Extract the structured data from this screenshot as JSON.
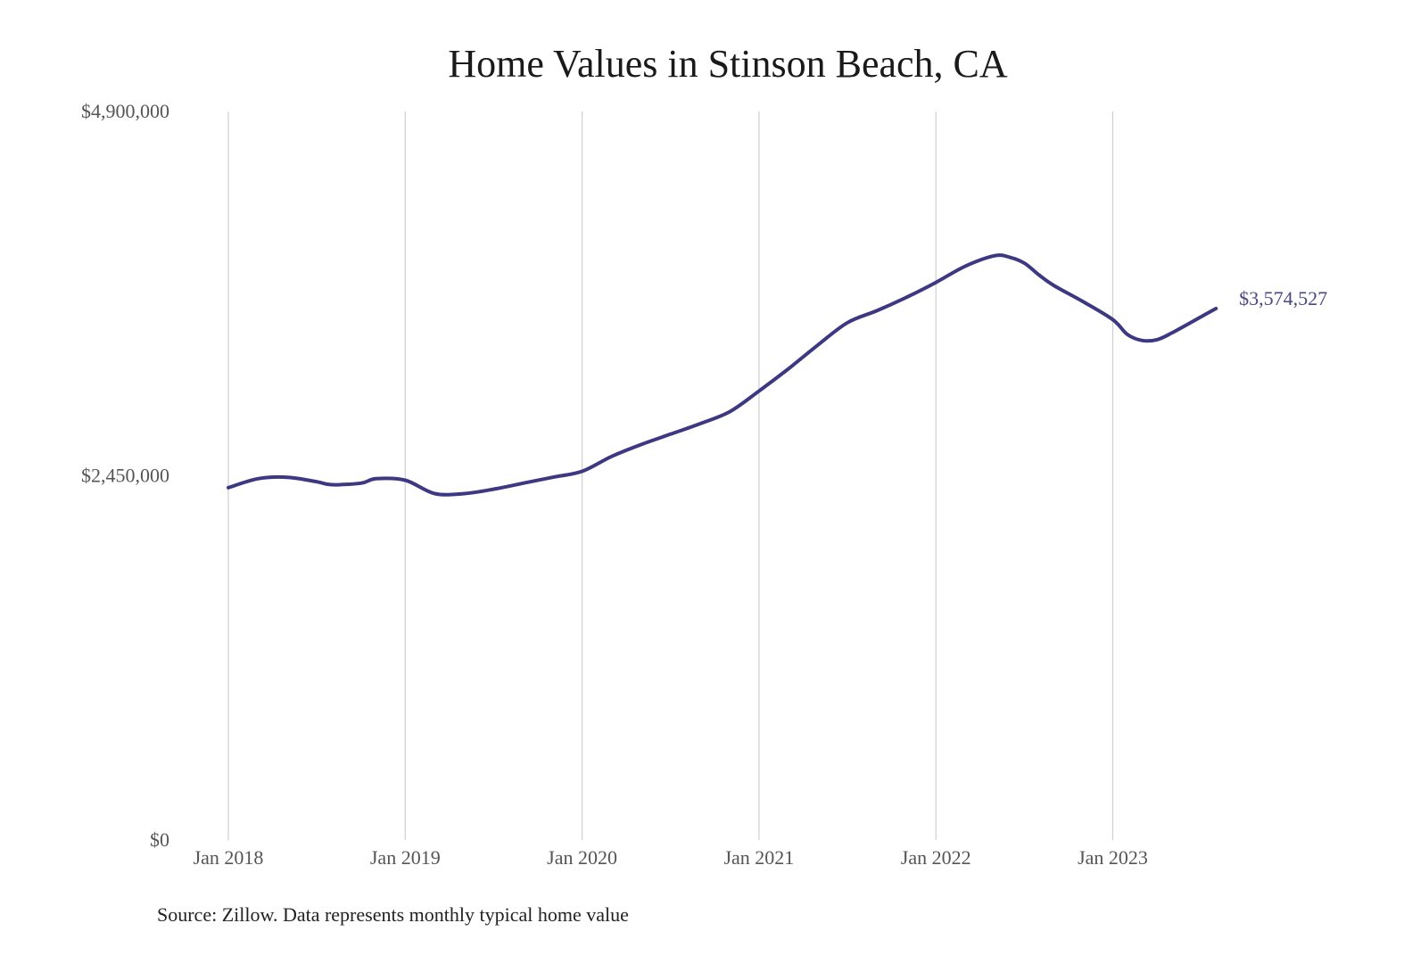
{
  "chart_data": {
    "type": "line",
    "title": "Home Values in Stinson Beach, CA",
    "xlabel": "",
    "ylabel": "",
    "ylim": [
      0,
      4900000
    ],
    "y_ticks": [
      0,
      2450000,
      4900000
    ],
    "y_tick_labels": [
      "$0",
      "$2,450,000",
      "$4,900,000"
    ],
    "x_range": [
      "2018-01",
      "2023-08"
    ],
    "x_ticks": [
      "2018-01",
      "2019-01",
      "2020-01",
      "2021-01",
      "2022-01",
      "2023-01"
    ],
    "x_tick_labels": [
      "Jan 2018",
      "Jan 2019",
      "Jan 2020",
      "Jan 2021",
      "Jan 2022",
      "Jan 2023"
    ],
    "grid": "vertical",
    "line_color": "#3d3882",
    "end_label": "$3,574,527",
    "series": [
      {
        "values": [
          {
            "x": "2018-01",
            "y": 2370000
          },
          {
            "x": "2018-03",
            "y": 2430000
          },
          {
            "x": "2018-05",
            "y": 2440000
          },
          {
            "x": "2018-07",
            "y": 2410000
          },
          {
            "x": "2018-08",
            "y": 2390000
          },
          {
            "x": "2018-10",
            "y": 2400000
          },
          {
            "x": "2018-11",
            "y": 2430000
          },
          {
            "x": "2019-01",
            "y": 2420000
          },
          {
            "x": "2019-03",
            "y": 2330000
          },
          {
            "x": "2019-05",
            "y": 2330000
          },
          {
            "x": "2019-07",
            "y": 2360000
          },
          {
            "x": "2019-09",
            "y": 2400000
          },
          {
            "x": "2019-11",
            "y": 2440000
          },
          {
            "x": "2020-01",
            "y": 2480000
          },
          {
            "x": "2020-03",
            "y": 2580000
          },
          {
            "x": "2020-05",
            "y": 2660000
          },
          {
            "x": "2020-07",
            "y": 2730000
          },
          {
            "x": "2020-09",
            "y": 2800000
          },
          {
            "x": "2020-11",
            "y": 2880000
          },
          {
            "x": "2021-01",
            "y": 3020000
          },
          {
            "x": "2021-03",
            "y": 3170000
          },
          {
            "x": "2021-05",
            "y": 3330000
          },
          {
            "x": "2021-07",
            "y": 3480000
          },
          {
            "x": "2021-09",
            "y": 3560000
          },
          {
            "x": "2021-11",
            "y": 3650000
          },
          {
            "x": "2022-01",
            "y": 3750000
          },
          {
            "x": "2022-03",
            "y": 3860000
          },
          {
            "x": "2022-05",
            "y": 3930000
          },
          {
            "x": "2022-06",
            "y": 3920000
          },
          {
            "x": "2022-07",
            "y": 3880000
          },
          {
            "x": "2022-08",
            "y": 3800000
          },
          {
            "x": "2022-09",
            "y": 3730000
          },
          {
            "x": "2022-11",
            "y": 3620000
          },
          {
            "x": "2023-01",
            "y": 3500000
          },
          {
            "x": "2023-02",
            "y": 3400000
          },
          {
            "x": "2023-03",
            "y": 3360000
          },
          {
            "x": "2023-04",
            "y": 3365000
          },
          {
            "x": "2023-05",
            "y": 3410000
          },
          {
            "x": "2023-07",
            "y": 3520000
          },
          {
            "x": "2023-08",
            "y": 3574527
          }
        ]
      }
    ]
  },
  "footer": {
    "source": "Source: Zillow. Data represents monthly typical home value"
  }
}
